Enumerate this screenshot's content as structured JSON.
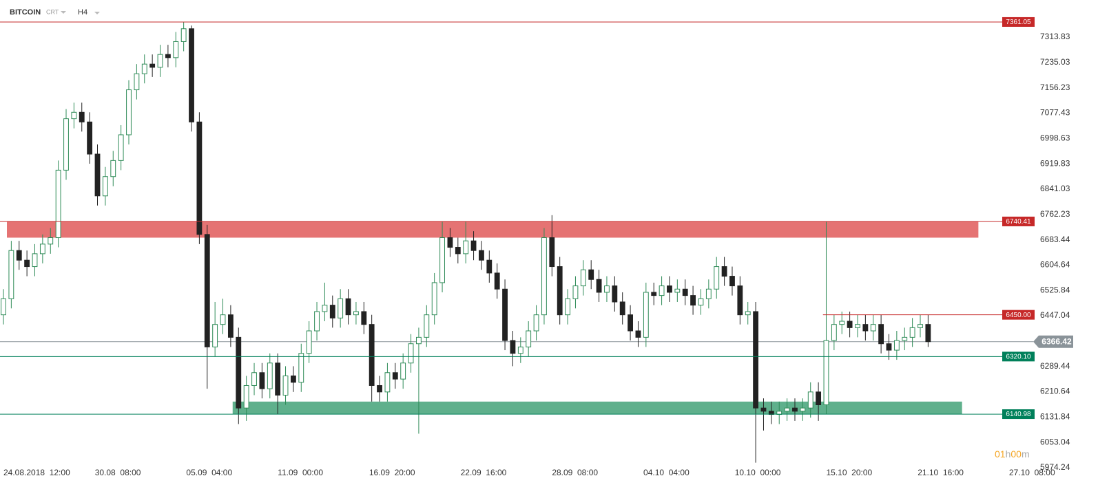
{
  "chart_data": {
    "type": "candlestick",
    "symbol": "BITCOIN",
    "source": "CRT",
    "timeframe": "H4",
    "countdown": [
      "01",
      "h",
      "00",
      "m"
    ],
    "up_color": "#2e8b57",
    "down_color": "#222222",
    "xlim": [
      -5.27,
      1577
    ],
    "xticks": [
      {
        "value": 0,
        "label": "24.08.2018  12:00"
      },
      {
        "value": 140,
        "label": "30.08  08:00"
      },
      {
        "value": 280,
        "label": "05.09  04:00"
      },
      {
        "value": 420,
        "label": "11.09  00:00"
      },
      {
        "value": 560,
        "label": "16.09  20:00"
      },
      {
        "value": 700,
        "label": "22.09  16:00"
      },
      {
        "value": 840,
        "label": "28.09  08:00"
      },
      {
        "value": 980,
        "label": "04.10  04:00"
      },
      {
        "value": 1120,
        "label": "10.10  00:00"
      },
      {
        "value": 1260,
        "label": "15.10  20:00"
      },
      {
        "value": 1400,
        "label": "21.10  16:00"
      },
      {
        "value": 1540,
        "label": "27.10  08:00"
      }
    ],
    "ylim": [
      5931.4,
      7429.4
    ],
    "yticks": [
      7313.83,
      7235.03,
      7156.23,
      7077.43,
      6998.63,
      6919.83,
      6841.03,
      6762.23,
      6683.44,
      6604.64,
      6525.84,
      6447.04,
      6289.44,
      6210.64,
      6131.84,
      6053.04,
      5974.24
    ],
    "zones": [
      {
        "from": 6690,
        "to": 6740.41,
        "x": [
          5.3,
          1493
        ],
        "color": "#e57373"
      },
      {
        "from": 6140.98,
        "to": 6180,
        "x": [
          351,
          1468
        ],
        "color": "#5fb08c"
      }
    ],
    "levels": [
      {
        "value": 7361.05,
        "color": "#c62828",
        "start": -5.27
      },
      {
        "value": 6740.41,
        "color": "#c62828",
        "start": -5.27
      },
      {
        "value": 6450,
        "label": "6450.00",
        "color": "#c62828",
        "start": 1255
      },
      {
        "value": 6320.1,
        "label": "6320.10",
        "color": "#00805a",
        "start": -5.27
      },
      {
        "value": 6140.98,
        "color": "#00805a",
        "start": -5.27
      }
    ],
    "current": {
      "value": 6366.42,
      "color": "#8a9399"
    },
    "candles": [
      [
        0,
        6450,
        6530,
        6420,
        6500
      ],
      [
        12,
        6500,
        6680,
        6470,
        6650
      ],
      [
        24,
        6650,
        6680,
        6590,
        6620
      ],
      [
        36,
        6620,
        6650,
        6570,
        6600
      ],
      [
        48,
        6600,
        6670,
        6570,
        6640
      ],
      [
        60,
        6640,
        6700,
        6610,
        6670
      ],
      [
        72,
        6670,
        6720,
        6640,
        6690
      ],
      [
        84,
        6690,
        6930,
        6660,
        6900
      ],
      [
        96,
        6900,
        7090,
        6870,
        7060
      ],
      [
        108,
        7060,
        7110,
        7030,
        7080
      ],
      [
        120,
        7080,
        7110,
        7020,
        7050
      ],
      [
        132,
        7050,
        7080,
        6920,
        6950
      ],
      [
        144,
        6950,
        6980,
        6790,
        6820
      ],
      [
        156,
        6820,
        6910,
        6790,
        6880
      ],
      [
        168,
        6880,
        6960,
        6850,
        6930
      ],
      [
        180,
        6930,
        7040,
        6900,
        7010
      ],
      [
        192,
        7010,
        7180,
        6980,
        7150
      ],
      [
        204,
        7150,
        7230,
        7120,
        7200
      ],
      [
        216,
        7200,
        7260,
        7170,
        7230
      ],
      [
        228,
        7230,
        7260,
        7190,
        7220
      ],
      [
        240,
        7220,
        7290,
        7190,
        7260
      ],
      [
        252,
        7260,
        7290,
        7220,
        7250
      ],
      [
        264,
        7250,
        7330,
        7220,
        7300
      ],
      [
        276,
        7300,
        7361.05,
        7270,
        7340
      ],
      [
        288,
        7340,
        7350,
        7020,
        7050
      ],
      [
        300,
        7050,
        7080,
        6670,
        6700
      ],
      [
        312,
        6700,
        6730,
        6220,
        6350
      ],
      [
        324,
        6350,
        6490,
        6320,
        6420
      ],
      [
        336,
        6420,
        6500,
        6390,
        6450
      ],
      [
        348,
        6450,
        6480,
        6350,
        6380
      ],
      [
        360,
        6380,
        6410,
        6110,
        6160
      ],
      [
        372,
        6160,
        6260,
        6120,
        6230
      ],
      [
        384,
        6230,
        6300,
        6200,
        6270
      ],
      [
        396,
        6270,
        6300,
        6190,
        6220
      ],
      [
        408,
        6220,
        6330,
        6190,
        6300
      ],
      [
        420,
        6300,
        6330,
        6140,
        6200
      ],
      [
        432,
        6200,
        6290,
        6170,
        6260
      ],
      [
        444,
        6260,
        6290,
        6210,
        6240
      ],
      [
        456,
        6240,
        6360,
        6210,
        6330
      ],
      [
        468,
        6330,
        6430,
        6300,
        6400
      ],
      [
        480,
        6400,
        6490,
        6370,
        6460
      ],
      [
        492,
        6460,
        6550,
        6430,
        6480
      ],
      [
        504,
        6480,
        6510,
        6410,
        6440
      ],
      [
        516,
        6440,
        6530,
        6410,
        6500
      ],
      [
        528,
        6500,
        6530,
        6420,
        6450
      ],
      [
        540,
        6450,
        6490,
        6420,
        6460
      ],
      [
        552,
        6460,
        6490,
        6390,
        6420
      ],
      [
        564,
        6420,
        6450,
        6180,
        6230
      ],
      [
        576,
        6230,
        6260,
        6180,
        6210
      ],
      [
        588,
        6210,
        6300,
        6180,
        6270
      ],
      [
        600,
        6270,
        6300,
        6220,
        6250
      ],
      [
        612,
        6250,
        6330,
        6220,
        6300
      ],
      [
        624,
        6300,
        6390,
        6270,
        6360
      ],
      [
        636,
        6360,
        6410,
        6080,
        6380
      ],
      [
        648,
        6380,
        6480,
        6350,
        6450
      ],
      [
        660,
        6450,
        6580,
        6420,
        6550
      ],
      [
        672,
        6550,
        6740,
        6520,
        6690
      ],
      [
        684,
        6690,
        6720,
        6630,
        6660
      ],
      [
        696,
        6660,
        6690,
        6610,
        6640
      ],
      [
        708,
        6640,
        6740,
        6610,
        6680
      ],
      [
        720,
        6680,
        6710,
        6620,
        6650
      ],
      [
        732,
        6650,
        6680,
        6590,
        6620
      ],
      [
        744,
        6620,
        6650,
        6550,
        6580
      ],
      [
        756,
        6580,
        6610,
        6500,
        6530
      ],
      [
        768,
        6530,
        6560,
        6340,
        6370
      ],
      [
        780,
        6370,
        6400,
        6290,
        6330
      ],
      [
        792,
        6330,
        6380,
        6300,
        6350
      ],
      [
        804,
        6350,
        6430,
        6320,
        6400
      ],
      [
        816,
        6400,
        6480,
        6370,
        6450
      ],
      [
        828,
        6450,
        6720,
        6420,
        6690
      ],
      [
        840,
        6690,
        6760,
        6570,
        6600
      ],
      [
        852,
        6600,
        6630,
        6420,
        6450
      ],
      [
        864,
        6450,
        6530,
        6420,
        6500
      ],
      [
        876,
        6500,
        6570,
        6470,
        6540
      ],
      [
        888,
        6540,
        6620,
        6510,
        6590
      ],
      [
        900,
        6590,
        6620,
        6530,
        6560
      ],
      [
        912,
        6560,
        6590,
        6490,
        6520
      ],
      [
        924,
        6520,
        6570,
        6490,
        6540
      ],
      [
        936,
        6540,
        6570,
        6460,
        6490
      ],
      [
        948,
        6490,
        6520,
        6420,
        6450
      ],
      [
        960,
        6450,
        6480,
        6370,
        6400
      ],
      [
        972,
        6400,
        6430,
        6350,
        6380
      ],
      [
        984,
        6380,
        6550,
        6350,
        6520
      ],
      [
        996,
        6520,
        6550,
        6480,
        6510
      ],
      [
        1008,
        6510,
        6570,
        6480,
        6540
      ],
      [
        1020,
        6540,
        6570,
        6490,
        6520
      ],
      [
        1032,
        6520,
        6560,
        6490,
        6530
      ],
      [
        1044,
        6530,
        6560,
        6480,
        6510
      ],
      [
        1056,
        6510,
        6540,
        6450,
        6480
      ],
      [
        1068,
        6480,
        6530,
        6450,
        6500
      ],
      [
        1080,
        6500,
        6560,
        6470,
        6530
      ],
      [
        1092,
        6530,
        6630,
        6500,
        6600
      ],
      [
        1104,
        6600,
        6630,
        6540,
        6570
      ],
      [
        1116,
        6570,
        6600,
        6510,
        6540
      ],
      [
        1128,
        6540,
        6570,
        6420,
        6450
      ],
      [
        1140,
        6450,
        6490,
        6420,
        6460
      ],
      [
        1152,
        6460,
        6490,
        5990,
        6160
      ],
      [
        1164,
        6160,
        6190,
        6090,
        6150
      ],
      [
        1176,
        6150,
        6180,
        6110,
        6140
      ],
      [
        1188,
        6140,
        6180,
        6110,
        6150
      ],
      [
        1200,
        6150,
        6190,
        6120,
        6160
      ],
      [
        1212,
        6160,
        6190,
        6120,
        6150
      ],
      [
        1224,
        6150,
        6190,
        6120,
        6160
      ],
      [
        1236,
        6160,
        6240,
        6130,
        6210
      ],
      [
        1248,
        6210,
        6240,
        6120,
        6170
      ],
      [
        1260,
        6170,
        6740,
        6140,
        6370
      ],
      [
        1272,
        6370,
        6450,
        6340,
        6420
      ],
      [
        1284,
        6420,
        6460,
        6390,
        6430
      ],
      [
        1296,
        6430,
        6460,
        6380,
        6410
      ],
      [
        1308,
        6410,
        6450,
        6380,
        6420
      ],
      [
        1320,
        6420,
        6450,
        6370,
        6400
      ],
      [
        1332,
        6400,
        6450,
        6370,
        6420
      ],
      [
        1344,
        6420,
        6450,
        6330,
        6360
      ],
      [
        1356,
        6360,
        6390,
        6310,
        6340
      ],
      [
        1368,
        6340,
        6400,
        6310,
        6370
      ],
      [
        1380,
        6370,
        6410,
        6340,
        6380
      ],
      [
        1392,
        6380,
        6440,
        6350,
        6410
      ],
      [
        1404,
        6410,
        6450,
        6380,
        6420
      ],
      [
        1416,
        6420,
        6450,
        6350,
        6366.42
      ]
    ]
  }
}
